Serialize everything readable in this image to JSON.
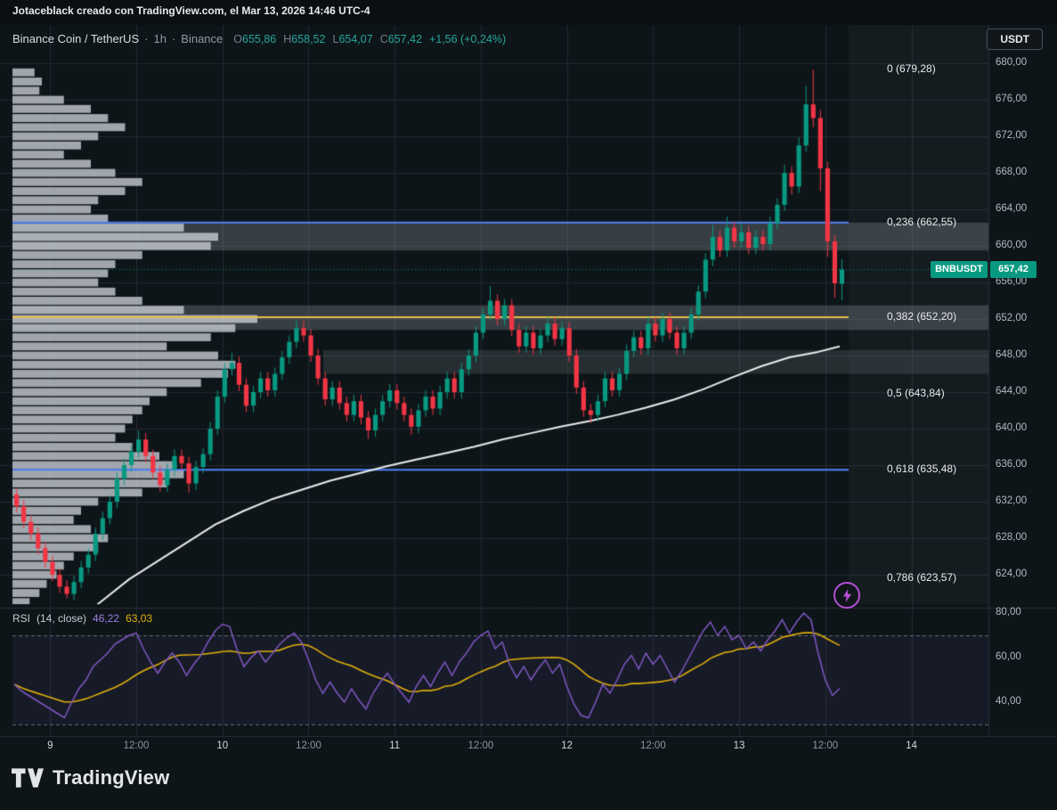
{
  "export_header": {
    "text": "Jotaceblack creado con TradingView.com, el Mar 13, 2026 14:46 UTC-4"
  },
  "symbol_legend": {
    "title": "Binance Coin / TetherUS",
    "sep": "·",
    "interval": "1h",
    "exchange": "Binance",
    "ohlc": {
      "o_label": "O",
      "o": "655,86",
      "h_label": "H",
      "h": "658,52",
      "l_label": "L",
      "l": "654,07",
      "c_label": "C",
      "c": "657,42",
      "change": "+1,56 (+0,24%)"
    }
  },
  "currency_button": {
    "label": "USDT"
  },
  "price_badge": {
    "symbol": "BNBUSDT",
    "price": "657,42"
  },
  "rsi_legend": {
    "title": "RSI",
    "params": "(14, close)",
    "value": "46,22",
    "ma_value": "63,03"
  },
  "watermark_logo": {
    "text": "TradingView"
  },
  "price_axis": {
    "labels": [
      {
        "p": 680,
        "t": "680,00"
      },
      {
        "p": 676,
        "t": "676,00"
      },
      {
        "p": 672,
        "t": "672,00"
      },
      {
        "p": 668,
        "t": "668,00"
      },
      {
        "p": 664,
        "t": "664,00"
      },
      {
        "p": 660,
        "t": "660,00"
      },
      {
        "p": 656,
        "t": "656,00"
      },
      {
        "p": 652,
        "t": "652,00"
      },
      {
        "p": 648,
        "t": "648,00"
      },
      {
        "p": 644,
        "t": "644,00"
      },
      {
        "p": 640,
        "t": "640,00"
      },
      {
        "p": 636,
        "t": "636,00"
      },
      {
        "p": 632,
        "t": "632,00"
      },
      {
        "p": 628,
        "t": "628,00"
      },
      {
        "p": 624,
        "t": "624,00"
      }
    ],
    "rsi_labels": [
      {
        "v": 80,
        "t": "80,00"
      },
      {
        "v": 60,
        "t": "60,00"
      },
      {
        "v": 40,
        "t": "40,00"
      }
    ]
  },
  "time_axis": {
    "ticks": [
      {
        "t": "9",
        "i": 5,
        "major": true
      },
      {
        "t": "12:00",
        "i": 17,
        "major": false
      },
      {
        "t": "10",
        "i": 29,
        "major": true
      },
      {
        "t": "12:00",
        "i": 41,
        "major": false
      },
      {
        "t": "11",
        "i": 53,
        "major": true
      },
      {
        "t": "12:00",
        "i": 65,
        "major": false
      },
      {
        "t": "12",
        "i": 77,
        "major": true
      },
      {
        "t": "12:00",
        "i": 89,
        "major": false
      },
      {
        "t": "13",
        "i": 101,
        "major": true
      },
      {
        "t": "12:00",
        "i": 113,
        "major": false
      },
      {
        "t": "14",
        "i": 125,
        "major": true
      }
    ]
  },
  "fib": {
    "levels": [
      {
        "label": "0 (679,28)",
        "value": 679.28,
        "line": "none"
      },
      {
        "label": "0,236 (662,55)",
        "value": 662.55,
        "line": "blue"
      },
      {
        "label": "0,382 (652,20)",
        "value": 652.2,
        "line": "gold"
      },
      {
        "label": "0,5 (643,84)",
        "value": 643.84,
        "line": "none"
      },
      {
        "label": "0,618 (635,48)",
        "value": 635.48,
        "line": "blue"
      },
      {
        "label": "0,786 (623,57)",
        "value": 623.57,
        "line": "none"
      }
    ],
    "bands": [
      {
        "from": 659.5,
        "to": 662.55,
        "start_x": "full",
        "opacity": 0.3
      },
      {
        "from": 650.8,
        "to": 653.5,
        "start_x": "full",
        "opacity": 0.3
      },
      {
        "from": 646.0,
        "to": 648.6,
        "start_x": "mid",
        "opacity": 0.18
      }
    ]
  },
  "colors": {
    "background": "#0e1519",
    "top_bar_bg": "#0a0f13",
    "up": "#089981",
    "down": "#f23645",
    "ma_line": "#eaecef",
    "fib_blue": "#4f82f7",
    "fib_gold": "#e7c14a",
    "volume_profile": "rgba(203,208,216,0.78)",
    "rsi_line": "#7e57c2",
    "rsi_ma": "#e2af0c",
    "grid": "rgba(54,60,72,0.5)",
    "divider": "#2a2f38",
    "dashed_band": "rgba(172,176,186,0.55)",
    "rsi_band_fill": "rgba(126,87,194,0.09)",
    "badge_green": "#089981",
    "accent_text": "#26a69a"
  },
  "chart_data": {
    "type": "candlestick",
    "title": "Binance Coin / TetherUS (BNBUSDT)",
    "exchange": "Binance",
    "interval": "1h",
    "last_close": 657.42,
    "change": "+1,56 (+0,24%)",
    "visible_price_range": [
      620.8,
      681.5
    ],
    "x_axis": "Mar 9 - Mar 14, hourly candles",
    "candles_ohlc": [
      [
        632.8,
        633.5,
        630.8,
        631.5
      ],
      [
        631.5,
        632.2,
        629.1,
        629.8
      ],
      [
        629.8,
        630.5,
        627.8,
        628.5
      ],
      [
        628.5,
        629.2,
        626.2,
        626.9
      ],
      [
        626.9,
        627.6,
        624.7,
        625.4
      ],
      [
        625.4,
        626.1,
        623.3,
        624.0
      ],
      [
        624.0,
        624.7,
        622.0,
        622.7
      ],
      [
        622.7,
        623.4,
        621.4,
        621.9
      ],
      [
        621.9,
        623.9,
        621.2,
        623.2
      ],
      [
        623.2,
        625.5,
        622.5,
        624.8
      ],
      [
        624.8,
        626.9,
        624.1,
        626.2
      ],
      [
        626.2,
        629.2,
        625.5,
        628.5
      ],
      [
        628.5,
        630.9,
        627.8,
        630.2
      ],
      [
        630.2,
        632.7,
        629.5,
        632.0
      ],
      [
        632.0,
        635.2,
        631.3,
        634.5
      ],
      [
        634.5,
        636.7,
        633.8,
        636.0
      ],
      [
        636.0,
        638.2,
        635.3,
        637.5
      ],
      [
        637.5,
        639.8,
        636.8,
        638.8
      ],
      [
        638.8,
        639.5,
        636.3,
        637.0
      ],
      [
        637.0,
        637.7,
        634.5,
        635.2
      ],
      [
        635.2,
        635.9,
        633.1,
        633.8
      ],
      [
        633.8,
        636.2,
        633.1,
        635.5
      ],
      [
        635.5,
        637.7,
        634.8,
        637.0
      ],
      [
        637.0,
        637.7,
        635.5,
        636.2
      ],
      [
        636.2,
        636.9,
        633.0,
        634.0
      ],
      [
        634.0,
        636.5,
        633.3,
        635.8
      ],
      [
        635.8,
        637.9,
        635.1,
        637.2
      ],
      [
        637.2,
        640.7,
        636.5,
        640.0
      ],
      [
        640.0,
        644.2,
        639.3,
        643.5
      ],
      [
        643.5,
        647.2,
        642.8,
        646.5
      ],
      [
        646.5,
        648.3,
        645.8,
        647.2
      ],
      [
        647.2,
        647.9,
        644.1,
        644.8
      ],
      [
        644.8,
        645.5,
        641.8,
        642.5
      ],
      [
        642.5,
        644.7,
        641.8,
        644.0
      ],
      [
        644.0,
        646.2,
        643.3,
        645.5
      ],
      [
        645.5,
        646.2,
        643.5,
        644.2
      ],
      [
        644.2,
        646.7,
        643.5,
        646.0
      ],
      [
        646.0,
        648.5,
        645.3,
        647.8
      ],
      [
        647.8,
        650.2,
        647.1,
        649.5
      ],
      [
        649.5,
        651.9,
        648.8,
        651.0
      ],
      [
        651.0,
        651.8,
        649.5,
        650.2
      ],
      [
        650.2,
        650.9,
        647.3,
        648.0
      ],
      [
        648.0,
        648.7,
        644.8,
        645.5
      ],
      [
        645.5,
        646.2,
        642.5,
        643.2
      ],
      [
        643.2,
        645.2,
        642.5,
        644.5
      ],
      [
        644.5,
        645.2,
        642.1,
        642.8
      ],
      [
        642.8,
        643.5,
        640.8,
        641.5
      ],
      [
        641.5,
        643.7,
        640.8,
        643.0
      ],
      [
        643.0,
        643.7,
        640.5,
        641.2
      ],
      [
        641.2,
        641.9,
        638.9,
        639.8
      ],
      [
        639.8,
        642.2,
        639.1,
        641.5
      ],
      [
        641.5,
        643.7,
        640.8,
        643.0
      ],
      [
        643.0,
        644.9,
        642.3,
        644.2
      ],
      [
        644.2,
        644.9,
        642.1,
        642.8
      ],
      [
        642.8,
        643.5,
        640.8,
        641.5
      ],
      [
        641.5,
        642.2,
        639.3,
        640.2
      ],
      [
        640.2,
        642.7,
        639.5,
        642.0
      ],
      [
        642.0,
        644.2,
        641.3,
        643.5
      ],
      [
        643.5,
        644.2,
        641.5,
        642.2
      ],
      [
        642.2,
        644.7,
        641.5,
        644.0
      ],
      [
        644.0,
        646.2,
        643.3,
        645.5
      ],
      [
        645.5,
        646.2,
        643.3,
        644.0
      ],
      [
        644.0,
        647.2,
        643.3,
        646.5
      ],
      [
        646.5,
        648.7,
        645.8,
        648.0
      ],
      [
        648.0,
        651.2,
        647.3,
        650.5
      ],
      [
        650.5,
        653.2,
        649.8,
        652.5
      ],
      [
        652.5,
        655.6,
        651.8,
        654.0
      ],
      [
        654.0,
        654.7,
        651.3,
        652.0
      ],
      [
        652.0,
        654.2,
        651.3,
        653.5
      ],
      [
        653.5,
        654.2,
        650.1,
        650.8
      ],
      [
        650.8,
        651.5,
        648.3,
        649.0
      ],
      [
        649.0,
        651.2,
        648.3,
        650.5
      ],
      [
        650.5,
        651.2,
        648.1,
        648.8
      ],
      [
        648.8,
        650.9,
        648.1,
        650.2
      ],
      [
        650.2,
        652.2,
        649.5,
        651.5
      ],
      [
        651.5,
        652.2,
        649.1,
        649.8
      ],
      [
        649.8,
        651.7,
        649.1,
        651.0
      ],
      [
        651.0,
        651.7,
        647.3,
        648.0
      ],
      [
        648.0,
        648.7,
        643.8,
        644.5
      ],
      [
        644.5,
        645.2,
        641.3,
        642.0
      ],
      [
        642.0,
        642.7,
        640.6,
        641.5
      ],
      [
        641.5,
        643.7,
        640.8,
        643.0
      ],
      [
        643.0,
        646.2,
        642.3,
        645.5
      ],
      [
        645.5,
        646.2,
        643.5,
        644.2
      ],
      [
        644.2,
        646.7,
        643.5,
        646.0
      ],
      [
        646.0,
        649.2,
        645.3,
        648.5
      ],
      [
        648.5,
        650.7,
        647.8,
        650.0
      ],
      [
        650.0,
        650.7,
        648.1,
        648.8
      ],
      [
        648.8,
        652.2,
        648.1,
        651.5
      ],
      [
        651.5,
        652.2,
        649.5,
        650.2
      ],
      [
        650.2,
        652.7,
        649.5,
        652.0
      ],
      [
        652.0,
        652.7,
        649.8,
        650.5
      ],
      [
        650.5,
        651.2,
        648.1,
        648.8
      ],
      [
        648.8,
        651.2,
        648.1,
        650.5
      ],
      [
        650.5,
        653.2,
        649.8,
        652.5
      ],
      [
        652.5,
        655.7,
        651.8,
        655.0
      ],
      [
        655.0,
        659.2,
        654.3,
        658.5
      ],
      [
        658.5,
        662.3,
        657.8,
        661.0
      ],
      [
        661.0,
        661.7,
        658.8,
        659.5
      ],
      [
        659.5,
        663.2,
        658.8,
        662.0
      ],
      [
        662.0,
        662.7,
        659.8,
        660.5
      ],
      [
        660.5,
        662.4,
        659.8,
        661.5
      ],
      [
        661.5,
        662.2,
        659.1,
        659.8
      ],
      [
        659.8,
        661.7,
        659.1,
        661.0
      ],
      [
        661.0,
        661.7,
        659.5,
        660.2
      ],
      [
        660.2,
        663.2,
        659.5,
        662.5
      ],
      [
        662.5,
        665.2,
        661.8,
        664.5
      ],
      [
        664.5,
        668.9,
        663.8,
        668.0
      ],
      [
        668.0,
        668.7,
        665.6,
        666.5
      ],
      [
        666.5,
        671.9,
        665.8,
        671.0
      ],
      [
        671.0,
        677.5,
        670.3,
        675.5
      ],
      [
        675.5,
        679.28,
        673.0,
        674.0
      ],
      [
        674.0,
        674.9,
        666.0,
        668.5
      ],
      [
        668.5,
        669.2,
        658.8,
        660.5
      ],
      [
        660.5,
        661.2,
        654.3,
        655.9
      ],
      [
        655.86,
        658.52,
        654.07,
        657.42
      ]
    ],
    "ma_white_points": [
      [
        0,
        615
      ],
      [
        4,
        616.5
      ],
      [
        8,
        618.5
      ],
      [
        12,
        621
      ],
      [
        16,
        623.5
      ],
      [
        20,
        625.5
      ],
      [
        24,
        627.5
      ],
      [
        28,
        629.5
      ],
      [
        32,
        631
      ],
      [
        36,
        632.3
      ],
      [
        40,
        633.3
      ],
      [
        44,
        634.3
      ],
      [
        48,
        635.1
      ],
      [
        52,
        635.9
      ],
      [
        56,
        636.6
      ],
      [
        60,
        637.3
      ],
      [
        64,
        638.0
      ],
      [
        68,
        638.8
      ],
      [
        72,
        639.5
      ],
      [
        76,
        640.2
      ],
      [
        80,
        640.8
      ],
      [
        84,
        641.5
      ],
      [
        88,
        642.3
      ],
      [
        92,
        643.2
      ],
      [
        96,
        644.3
      ],
      [
        100,
        645.6
      ],
      [
        104,
        646.8
      ],
      [
        108,
        647.8
      ],
      [
        112,
        648.4
      ],
      [
        115,
        649.0
      ]
    ],
    "volume_profile": {
      "price_top": 679,
      "price_step": 1,
      "values": [
        9,
        12,
        11,
        21,
        32,
        39,
        46,
        35,
        28,
        21,
        32,
        42,
        53,
        46,
        35,
        32,
        39,
        70,
        84,
        81,
        53,
        42,
        39,
        35,
        42,
        53,
        70,
        100,
        91,
        81,
        63,
        84,
        91,
        88,
        77,
        63,
        56,
        53,
        49,
        46,
        42,
        49,
        60,
        67,
        70,
        63,
        53,
        35,
        28,
        25,
        32,
        39,
        35,
        25,
        21,
        18,
        14,
        11,
        7
      ]
    },
    "fib_retracement": {
      "ratios": [
        0,
        0.236,
        0.382,
        0.5,
        0.618,
        0.786
      ],
      "levels": [
        679.28,
        662.55,
        652.2,
        643.84,
        635.48,
        623.57
      ]
    },
    "rsi": {
      "period": 14,
      "last": 46.22,
      "ma_last": 63.03,
      "upper_band": 70,
      "lower_band": 30,
      "axis_ticks": [
        80,
        60,
        40
      ],
      "values": [
        48,
        45,
        43,
        41,
        39,
        37,
        35,
        33,
        40,
        46,
        50,
        56,
        59,
        62,
        66,
        68,
        70,
        71,
        64,
        58,
        53,
        58,
        62,
        58,
        52,
        57,
        61,
        67,
        72,
        75,
        74,
        64,
        56,
        60,
        63,
        58,
        62,
        66,
        69,
        71,
        67,
        59,
        50,
        44,
        49,
        44,
        40,
        46,
        41,
        37,
        44,
        49,
        53,
        48,
        44,
        40,
        47,
        52,
        47,
        53,
        58,
        52,
        58,
        62,
        67,
        70,
        72,
        64,
        67,
        57,
        51,
        56,
        50,
        55,
        59,
        53,
        57,
        47,
        39,
        34,
        33,
        40,
        48,
        44,
        50,
        57,
        61,
        55,
        62,
        57,
        61,
        55,
        49,
        54,
        60,
        66,
        72,
        76,
        70,
        74,
        68,
        70,
        64,
        67,
        63,
        68,
        72,
        77,
        71,
        76,
        80,
        77,
        62,
        50,
        43,
        46.22
      ]
    }
  }
}
